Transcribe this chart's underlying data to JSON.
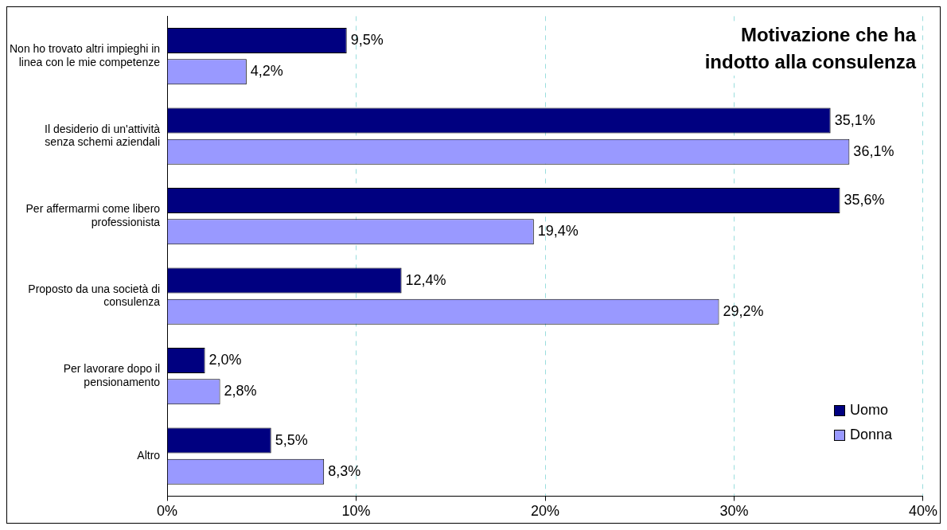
{
  "chart_data": {
    "type": "bar",
    "orientation": "horizontal",
    "title": "Motivazione che ha indotto alla consulenza",
    "categories": [
      "Non ho trovato altri impieghi in linea con le mie competenze",
      "Il desiderio di un'attività senza schemi aziendali",
      "Per affermarmi come libero professionista",
      "Proposto da una società di consulenza",
      "Per lavorare dopo il pensionamento",
      "Altro"
    ],
    "series": [
      {
        "name": "Uomo",
        "color": "#000080",
        "values": [
          9.5,
          35.1,
          35.6,
          12.4,
          2.0,
          5.5
        ],
        "value_labels": [
          "9,5%",
          "35,1%",
          "35,6%",
          "12,4%",
          "2,0%",
          "5,5%"
        ]
      },
      {
        "name": "Donna",
        "color": "#9999ff",
        "values": [
          4.2,
          36.1,
          19.4,
          29.2,
          2.8,
          8.3
        ],
        "value_labels": [
          "4,2%",
          "36,1%",
          "19,4%",
          "29,2%",
          "2,8%",
          "8,3%"
        ]
      }
    ],
    "xlim": [
      0,
      40
    ],
    "xticks": [
      {
        "value": 0,
        "label": "0%"
      },
      {
        "value": 10,
        "label": "10%"
      },
      {
        "value": 20,
        "label": "20%"
      },
      {
        "value": 30,
        "label": "30%"
      },
      {
        "value": 40,
        "label": "40%"
      }
    ],
    "grid": "x",
    "legend": "bottom right"
  }
}
